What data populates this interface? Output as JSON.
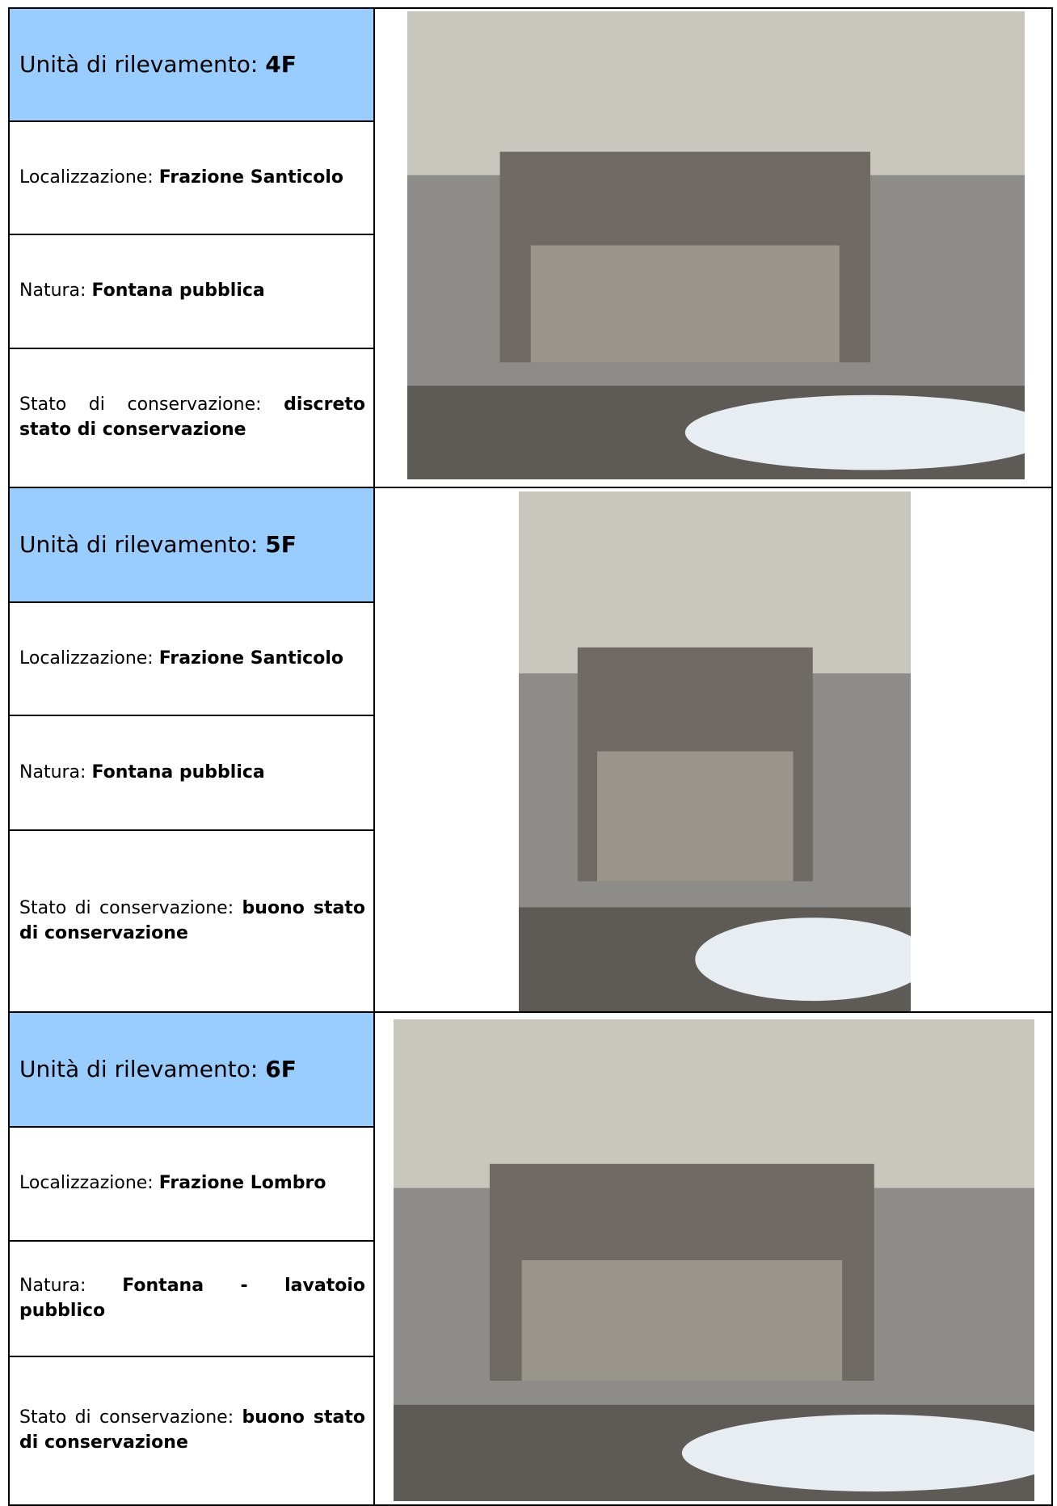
{
  "records": [
    {
      "unit": {
        "label": "Unità di rilevamento:",
        "value": "4F"
      },
      "location": {
        "label": "Localizzazione:",
        "value": "Frazione Santicolo"
      },
      "nature": {
        "label": "Natura:",
        "value": "Fontana pubblica"
      },
      "condition": {
        "label": "Stato di conservazione:",
        "value": "discreto stato di conservazione"
      }
    },
    {
      "unit": {
        "label": "Unità di rilevamento:",
        "value": "5F"
      },
      "location": {
        "label": "Localizzazione:",
        "value": "Frazione Santicolo"
      },
      "nature": {
        "label": "Natura:",
        "value": "Fontana pubblica"
      },
      "condition": {
        "label": "Stato di conservazione:",
        "value": "buono stato di conservazione"
      }
    },
    {
      "unit": {
        "label": "Unità di rilevamento:",
        "value": "6F"
      },
      "location": {
        "label": "Localizzazione:",
        "value": "Frazione Lombro"
      },
      "nature": {
        "label": "Natura:",
        "value": "Fontana - lavatoio pubblico"
      },
      "condition": {
        "label": "Stato di conservazione:",
        "value": "buono stato di conservazione"
      }
    }
  ]
}
